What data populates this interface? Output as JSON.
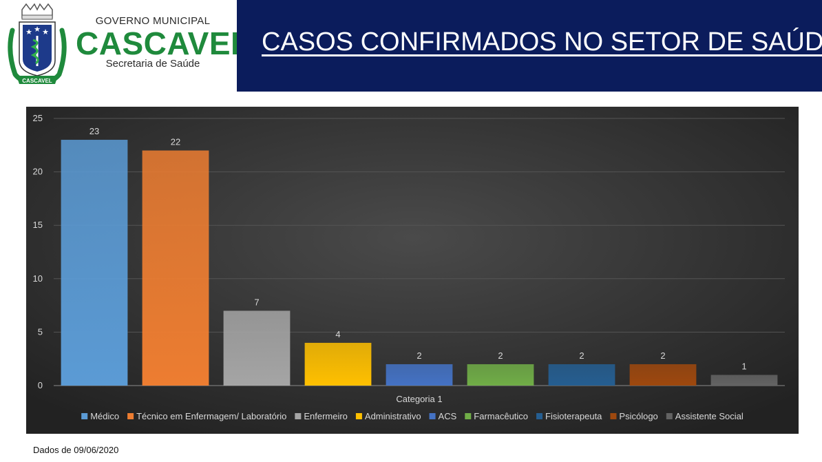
{
  "header": {
    "org_line1": "GOVERNO MUNICIPAL",
    "org_line2": "CASCAVEL",
    "org_line3": "Secretaria de Saúde",
    "logo_banner": "CASCAVEL",
    "title": "CASOS CONFIRMADOS NO SETOR DE SAÚDE",
    "band_color": "#0b1c5c",
    "brand_green": "#1f8a3c"
  },
  "chart_data": {
    "type": "bar",
    "categories": [
      "Categoria 1"
    ],
    "series": [
      {
        "name": "Médico",
        "values": [
          23
        ],
        "color": "#5b9bd5"
      },
      {
        "name": "Técnico em Enfermagem/ Laboratório",
        "values": [
          22
        ],
        "color": "#ed7d31"
      },
      {
        "name": "Enfermeiro",
        "values": [
          7
        ],
        "color": "#a5a5a5"
      },
      {
        "name": "Administrativo",
        "values": [
          4
        ],
        "color": "#ffc000"
      },
      {
        "name": "ACS",
        "values": [
          2
        ],
        "color": "#4472c4"
      },
      {
        "name": "Farmacêutico",
        "values": [
          2
        ],
        "color": "#70ad47"
      },
      {
        "name": "Fisioterapeuta",
        "values": [
          2
        ],
        "color": "#255e91"
      },
      {
        "name": "Psicólogo",
        "values": [
          2
        ],
        "color": "#9e480e"
      },
      {
        "name": "Assistente Social",
        "values": [
          1
        ],
        "color": "#636363"
      }
    ],
    "ylim": [
      0,
      25
    ],
    "yticks": [
      0,
      5,
      10,
      15,
      20,
      25
    ],
    "grid": true,
    "legend": "bottom",
    "data_labels": true
  },
  "footnote": "Dados de 09/06/2020"
}
